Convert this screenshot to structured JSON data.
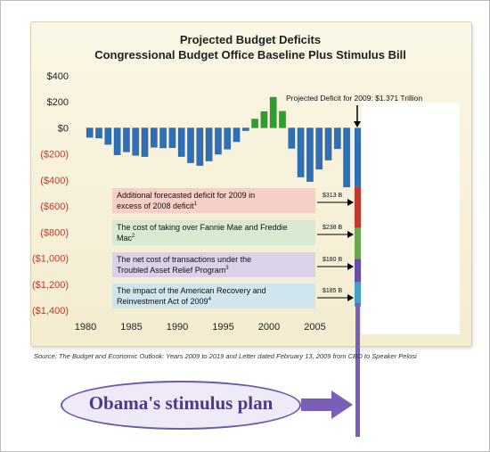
{
  "chart_data": {
    "type": "bar",
    "title": "Projected Budget Deficits",
    "subtitle": "Congressional Budget Office Baseline Plus Stimulus Bill",
    "y_ticks": [
      "$400",
      "$200",
      "$0",
      "($200)",
      "($400)",
      "($600)",
      "($800)",
      "($1,000)",
      "($1,200)",
      "($1,400)"
    ],
    "x_ticks": [
      "1980",
      "1985",
      "1990",
      "1995",
      "2000",
      "2005"
    ],
    "ylim": [
      -1400,
      400
    ],
    "xlim": [
      1980,
      2010
    ],
    "categories": [
      1980,
      1981,
      1982,
      1983,
      1984,
      1985,
      1986,
      1987,
      1988,
      1989,
      1990,
      1991,
      1992,
      1993,
      1994,
      1995,
      1996,
      1997,
      1998,
      1999,
      2000,
      2001,
      2002,
      2003,
      2004,
      2005,
      2006,
      2007,
      2008
    ],
    "values": [
      -74,
      -79,
      -128,
      -208,
      -185,
      -212,
      -221,
      -150,
      -155,
      -153,
      -221,
      -269,
      -290,
      -255,
      -203,
      -164,
      -107,
      -22,
      69,
      126,
      236,
      128,
      -158,
      -378,
      -413,
      -318,
      -248,
      -161,
      -455
    ],
    "negative_color": "#2e6fb5",
    "positive_color": "#2ca02c",
    "annotation_main": "Projected Deficit for 2009: $1.371 Trillion",
    "stacked_2009": [
      {
        "label": "Additional forecasted deficit for 2009 in excess of 2008 deficit",
        "sup": "1",
        "amount": "$313 B",
        "value": 313,
        "color": "#c0392b",
        "box_color": "#f6d0c6"
      },
      {
        "label": "The cost of taking over Fannie Mae and Freddie Mac",
        "sup": "2",
        "amount": "$238 B",
        "value": 238,
        "color": "#6aa84f",
        "box_color": "#d9ead3"
      },
      {
        "label": "The net cost of transactions under the Troubled Asset Relief Program",
        "sup": "3",
        "amount": "$180 B",
        "value": 180,
        "color": "#674ea7",
        "box_color": "#d9d2e9"
      },
      {
        "label": "The impact of the American Recovery and Reinvestment Act of 2009",
        "sup": "4",
        "amount": "$185 B",
        "value": 185,
        "color": "#45a0c8",
        "box_color": "#d0e6ee"
      }
    ]
  },
  "source": "Source: The Budget and Economic Outlook: Years 2009 to 2019 and Letter dated February 13, 2009 from CBO to Speaker Pelosi",
  "callout": "Obama's stimulus plan",
  "colors": {
    "accent": "#6f5aa8"
  }
}
